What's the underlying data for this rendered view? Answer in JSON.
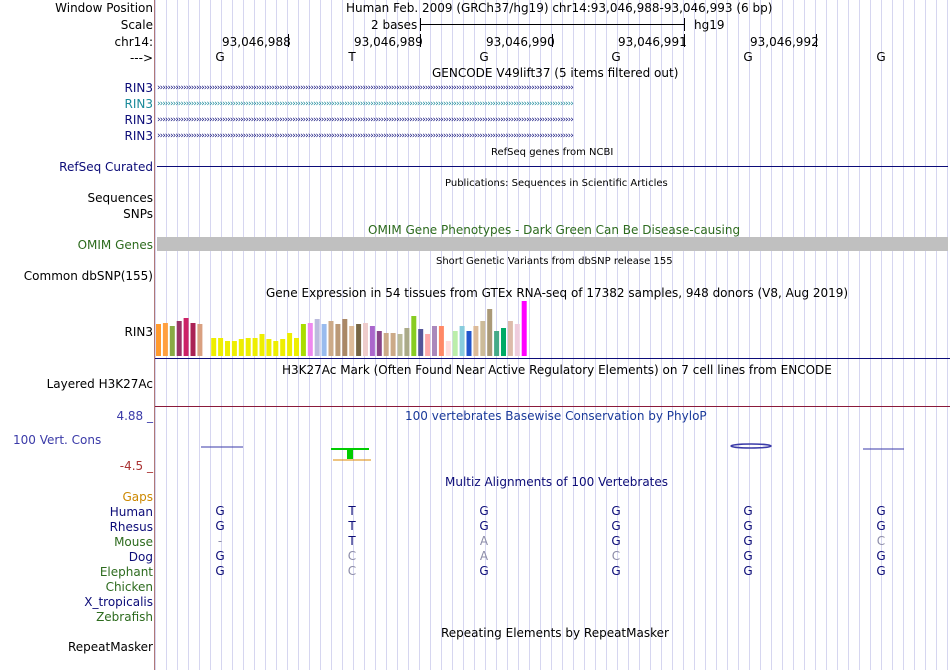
{
  "header": {
    "window_position_label": "Window Position",
    "window_position_value": "Human Feb. 2009 (GRCh37/hg19)   chr14:93,046,988-93,046,993 (6 bp)",
    "scale_label": "Scale",
    "scale_value": "2 bases",
    "scale_assembly": "hg19",
    "chrom_label": "chr14:",
    "positions": [
      "93,046,988",
      "93,046,989",
      "93,046,990",
      "93,046,991",
      "93,046,992"
    ],
    "strand_label": "--->",
    "bases": [
      "G",
      "T",
      "G",
      "G",
      "G",
      "G"
    ]
  },
  "gencode": {
    "title": "GENCODE V49lift37 (5 items filtered out)",
    "items": [
      "RIN3",
      "RIN3",
      "RIN3",
      "RIN3"
    ],
    "colors": [
      "#0c0c78",
      "#1a8a9a",
      "#0c0c78",
      "#0c0c78"
    ]
  },
  "refseq": {
    "label": "RefSeq Curated",
    "title": "RefSeq genes from NCBI"
  },
  "publications": {
    "title": "Publications: Sequences in Scientific Articles",
    "label": "Sequences"
  },
  "snps": {
    "label": "SNPs"
  },
  "omim": {
    "label": "OMIM Genes",
    "title": "OMIM Gene Phenotypes - Dark Green Can Be Disease-causing"
  },
  "dbsnp": {
    "label": "Common dbSNP(155)",
    "title": "Short Genetic Variants from dbSNP release 155"
  },
  "gtex": {
    "title": "Gene Expression in 54 tissues from GTEx RNA-seq of 17382 samples, 948 donors (V8, Aug 2019)",
    "label": "RIN3",
    "bars": [
      {
        "v": 0.38,
        "c": "#ff9a2e"
      },
      {
        "v": 0.4,
        "c": "#ffa040"
      },
      {
        "v": 0.36,
        "c": "#88aa44"
      },
      {
        "v": 0.42,
        "c": "#993366"
      },
      {
        "v": 0.46,
        "c": "#cc2266"
      },
      {
        "v": 0.4,
        "c": "#aa2255"
      },
      {
        "v": 0.38,
        "c": "#d9a080"
      },
      {
        "v": 0.0,
        "c": "#ffffff"
      },
      {
        "v": 0.22,
        "c": "#eeee00"
      },
      {
        "v": 0.22,
        "c": "#eeee00"
      },
      {
        "v": 0.18,
        "c": "#eeee00"
      },
      {
        "v": 0.18,
        "c": "#eeee00"
      },
      {
        "v": 0.2,
        "c": "#eeee00"
      },
      {
        "v": 0.22,
        "c": "#eeee00"
      },
      {
        "v": 0.22,
        "c": "#eeee00"
      },
      {
        "v": 0.26,
        "c": "#eeee00"
      },
      {
        "v": 0.2,
        "c": "#eeee00"
      },
      {
        "v": 0.18,
        "c": "#eeee00"
      },
      {
        "v": 0.2,
        "c": "#eeee00"
      },
      {
        "v": 0.28,
        "c": "#eeee00"
      },
      {
        "v": 0.22,
        "c": "#eeee00"
      },
      {
        "v": 0.38,
        "c": "#aadd00"
      },
      {
        "v": 0.4,
        "c": "#ee88ee"
      },
      {
        "v": 0.44,
        "c": "#bbbbdd"
      },
      {
        "v": 0.38,
        "c": "#99bbee"
      },
      {
        "v": 0.42,
        "c": "#ccaa88"
      },
      {
        "v": 0.38,
        "c": "#bb9977"
      },
      {
        "v": 0.44,
        "c": "#aa8866"
      },
      {
        "v": 0.36,
        "c": "#ddbb99"
      },
      {
        "v": 0.38,
        "c": "#776644"
      },
      {
        "v": 0.4,
        "c": "#eecccc"
      },
      {
        "v": 0.36,
        "c": "#aa66cc"
      },
      {
        "v": 0.3,
        "c": "#884488"
      },
      {
        "v": 0.28,
        "c": "#ccaa88"
      },
      {
        "v": 0.28,
        "c": "#ccaa88"
      },
      {
        "v": 0.26,
        "c": "#bbbb99"
      },
      {
        "v": 0.34,
        "c": "#aaaa88"
      },
      {
        "v": 0.48,
        "c": "#88cc22"
      },
      {
        "v": 0.32,
        "c": "#555599"
      },
      {
        "v": 0.26,
        "c": "#ffaaaa"
      },
      {
        "v": 0.36,
        "c": "#aa88bb"
      },
      {
        "v": 0.36,
        "c": "#ff8866"
      },
      {
        "v": 0.18,
        "c": "#ffdddd"
      },
      {
        "v": 0.3,
        "c": "#bbeeaa"
      },
      {
        "v": 0.36,
        "c": "#88ccdd"
      },
      {
        "v": 0.3,
        "c": "#2255cc"
      },
      {
        "v": 0.36,
        "c": "#ddbb99"
      },
      {
        "v": 0.42,
        "c": "#ccbb99"
      },
      {
        "v": 0.56,
        "c": "#aa9977"
      },
      {
        "v": 0.3,
        "c": "#44aa88"
      },
      {
        "v": 0.34,
        "c": "#00aa66"
      },
      {
        "v": 0.42,
        "c": "#ddbbaa"
      },
      {
        "v": 0.38,
        "c": "#eeccdd"
      },
      {
        "v": 0.66,
        "c": "#ff00ff"
      }
    ]
  },
  "h3k27ac": {
    "label": "Layered H3K27Ac",
    "title": "H3K27Ac Mark (Often Found Near Active Regulatory Elements) on 7 cell lines from ENCODE"
  },
  "phylop": {
    "title": "100 vertebrates Basewise Conservation by PhyloP",
    "label": "100 Vert. Cons",
    "max": "4.88 _",
    "min": "-4.5 _"
  },
  "multiz": {
    "title": "Multiz Alignments of 100 Vertebrates",
    "gaps_label": "Gaps",
    "species": [
      {
        "name": "Human",
        "color": "#0c0c78",
        "bases": [
          "G",
          "T",
          "G",
          "G",
          "G",
          "G"
        ],
        "dim": [
          false,
          false,
          false,
          false,
          false,
          false
        ]
      },
      {
        "name": "Rhesus",
        "color": "#0c0c78",
        "bases": [
          "G",
          "T",
          "G",
          "G",
          "G",
          "G"
        ],
        "dim": [
          false,
          false,
          false,
          false,
          false,
          false
        ]
      },
      {
        "name": "Mouse",
        "color": "#2d6b1e",
        "bases": [
          "-",
          "T",
          "A",
          "G",
          "G",
          "C"
        ],
        "dim": [
          true,
          false,
          true,
          false,
          false,
          true
        ]
      },
      {
        "name": "Dog",
        "color": "#0c0c78",
        "bases": [
          "G",
          "C",
          "A",
          "C",
          "G",
          "G"
        ],
        "dim": [
          false,
          true,
          true,
          true,
          false,
          false
        ]
      },
      {
        "name": "Elephant",
        "color": "#2d6b1e",
        "bases": [
          "G",
          "C",
          "G",
          "G",
          "G",
          "G"
        ],
        "dim": [
          false,
          true,
          false,
          false,
          false,
          false
        ]
      },
      {
        "name": "Chicken",
        "color": "#2d6b1e",
        "bases": [],
        "dim": []
      },
      {
        "name": "X_tropicalis",
        "color": "#0c0c78",
        "bases": [],
        "dim": []
      },
      {
        "name": "Zebrafish",
        "color": "#2d6b1e",
        "bases": [],
        "dim": []
      }
    ]
  },
  "repeatmasker": {
    "label": "RepeatMasker",
    "title": "Repeating Elements by RepeatMasker"
  },
  "colors": {
    "navy": "#0c0c78",
    "teal": "#1a8a9a",
    "omim_gray": "#c0c0c0",
    "separator_red": "#aa4444",
    "green_label": "#2d6b1e",
    "gaps_orange": "#cc8800"
  }
}
